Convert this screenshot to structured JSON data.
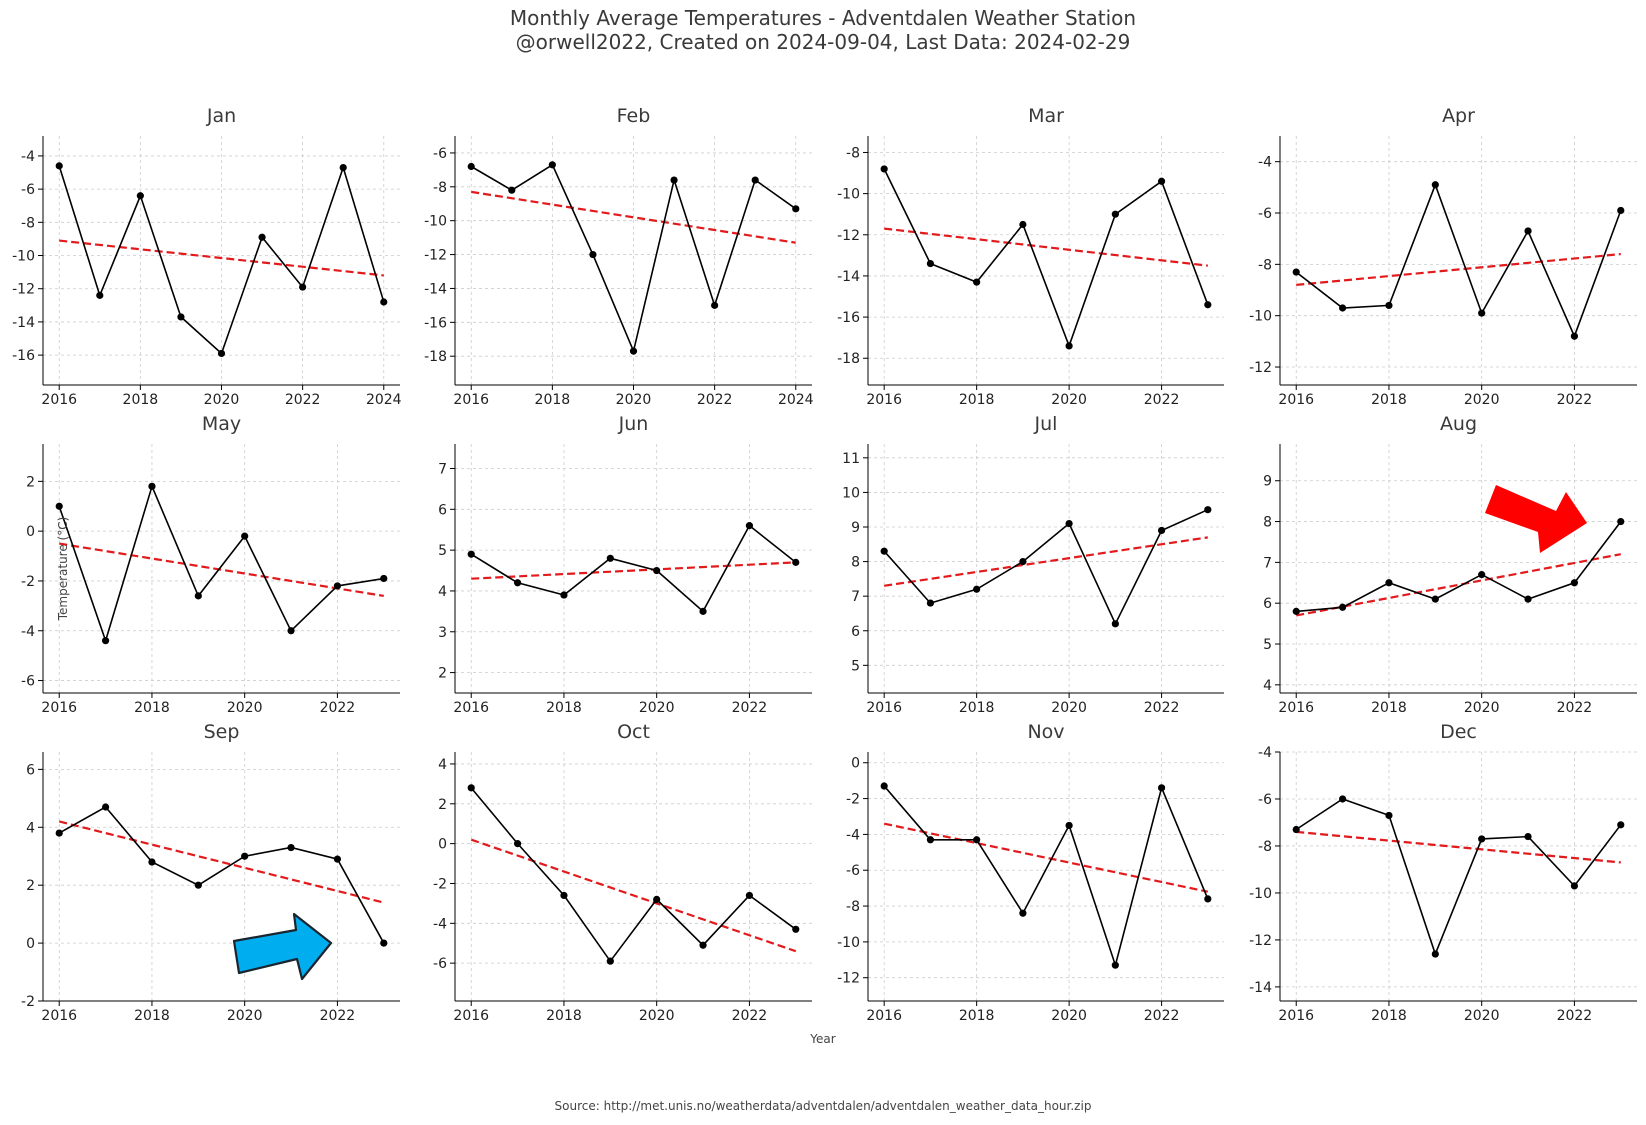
{
  "title_line1": "Monthly Average Temperatures - Adventdalen Weather Station",
  "title_line2": "@orwell2022, Created on 2024-09-04, Last Data: 2024-02-29",
  "xlabel": "Year",
  "ylabel": "Temperature (°C)",
  "source": "Source: http://met.unis.no/weatherdata/adventdalen/adventdalen_weather_data_hour.zip",
  "colors": {
    "data_line": "#000000",
    "trend_line": "#e31a1c",
    "grid": "#cccccc",
    "red_arrow": "#ff0000",
    "blue_arrow": "#00aeef"
  },
  "chart_data": [
    {
      "type": "line",
      "title": "Jan",
      "x": [
        2016,
        2017,
        2018,
        2019,
        2020,
        2021,
        2022,
        2023,
        2024
      ],
      "values": [
        -4.6,
        -12.4,
        -6.4,
        -13.7,
        -15.9,
        -8.9,
        -11.9,
        -4.7,
        -12.8
      ],
      "trend": [
        [
          2016,
          -9.1
        ],
        [
          2024,
          -11.2
        ]
      ],
      "xlim": [
        2015.6,
        2024.4
      ],
      "ylim": [
        -17.8,
        -2.8
      ],
      "xticks": [
        2016,
        2018,
        2020,
        2022,
        2024
      ],
      "yticks": [
        -4,
        -6,
        -8,
        -10,
        -12,
        -14,
        -16
      ],
      "grid": true
    },
    {
      "type": "line",
      "title": "Feb",
      "x": [
        2016,
        2017,
        2018,
        2019,
        2020,
        2021,
        2022,
        2023,
        2024
      ],
      "values": [
        -6.8,
        -8.2,
        -6.7,
        -12.0,
        -17.7,
        -7.6,
        -15.0,
        -7.6,
        -9.3
      ],
      "trend": [
        [
          2016,
          -8.3
        ],
        [
          2024,
          -11.3
        ]
      ],
      "xlim": [
        2015.6,
        2024.4
      ],
      "ylim": [
        -19.7,
        -5.0
      ],
      "xticks": [
        2016,
        2018,
        2020,
        2022,
        2024
      ],
      "yticks": [
        -6,
        -8,
        -10,
        -12,
        -14,
        -16,
        -18
      ],
      "grid": true
    },
    {
      "type": "line",
      "title": "Mar",
      "x": [
        2016,
        2017,
        2018,
        2019,
        2020,
        2021,
        2022,
        2023
      ],
      "values": [
        -8.8,
        -13.4,
        -14.3,
        -11.5,
        -17.4,
        -11.0,
        -9.4,
        -15.4
      ],
      "trend": [
        [
          2016,
          -11.7
        ],
        [
          2023,
          -13.5
        ]
      ],
      "xlim": [
        2015.65,
        2023.35
      ],
      "ylim": [
        -19.3,
        -7.2
      ],
      "xticks": [
        2016,
        2018,
        2020,
        2022
      ],
      "yticks": [
        -8,
        -10,
        -12,
        -14,
        -16,
        -18
      ],
      "grid": true
    },
    {
      "type": "line",
      "title": "Apr",
      "x": [
        2016,
        2017,
        2018,
        2019,
        2020,
        2021,
        2022,
        2023
      ],
      "values": [
        -8.3,
        -9.7,
        -9.6,
        -4.9,
        -9.9,
        -6.7,
        -10.8,
        -5.9
      ],
      "trend": [
        [
          2016,
          -8.8
        ],
        [
          2023,
          -7.6
        ]
      ],
      "xlim": [
        2015.65,
        2023.35
      ],
      "ylim": [
        -12.7,
        -3.0
      ],
      "xticks": [
        2016,
        2018,
        2020,
        2022
      ],
      "yticks": [
        -4,
        -6,
        -8,
        -10,
        -12
      ],
      "grid": true
    },
    {
      "type": "line",
      "title": "May",
      "x": [
        2016,
        2017,
        2018,
        2019,
        2020,
        2021,
        2022,
        2023
      ],
      "values": [
        1.0,
        -4.4,
        1.8,
        -2.6,
        -0.2,
        -4.0,
        -2.2,
        -1.9
      ],
      "trend": [
        [
          2016,
          -0.5
        ],
        [
          2023,
          -2.6
        ]
      ],
      "xlim": [
        2015.65,
        2023.35
      ],
      "ylim": [
        -6.5,
        3.5
      ],
      "xticks": [
        2016,
        2018,
        2020,
        2022
      ],
      "yticks": [
        2,
        0,
        -2,
        -4,
        -6
      ],
      "grid": true
    },
    {
      "type": "line",
      "title": "Jun",
      "x": [
        2016,
        2017,
        2018,
        2019,
        2020,
        2021,
        2022,
        2023
      ],
      "values": [
        4.9,
        4.2,
        3.9,
        4.8,
        4.5,
        3.5,
        5.6,
        4.7
      ],
      "trend": [
        [
          2016,
          4.3
        ],
        [
          2023,
          4.7
        ]
      ],
      "xlim": [
        2015.65,
        2023.35
      ],
      "ylim": [
        1.5,
        7.6
      ],
      "xticks": [
        2016,
        2018,
        2020,
        2022
      ],
      "yticks": [
        2,
        3,
        4,
        5,
        6,
        7
      ],
      "grid": true
    },
    {
      "type": "line",
      "title": "Jul",
      "x": [
        2016,
        2017,
        2018,
        2019,
        2020,
        2021,
        2022,
        2023
      ],
      "values": [
        8.3,
        6.8,
        7.2,
        8.0,
        9.1,
        6.2,
        8.9,
        9.5
      ],
      "trend": [
        [
          2016,
          7.3
        ],
        [
          2023,
          8.7
        ]
      ],
      "xlim": [
        2015.65,
        2023.35
      ],
      "ylim": [
        4.2,
        11.4
      ],
      "xticks": [
        2016,
        2018,
        2020,
        2022
      ],
      "yticks": [
        5,
        6,
        7,
        8,
        9,
        10,
        11
      ],
      "grid": true
    },
    {
      "type": "line",
      "title": "Aug",
      "x": [
        2016,
        2017,
        2018,
        2019,
        2020,
        2021,
        2022,
        2023
      ],
      "values": [
        5.8,
        5.9,
        6.5,
        6.1,
        6.7,
        6.1,
        6.5,
        8.0
      ],
      "trend": [
        [
          2016,
          5.7
        ],
        [
          2023,
          7.2
        ]
      ],
      "xlim": [
        2015.65,
        2023.35
      ],
      "ylim": [
        3.8,
        9.9
      ],
      "xticks": [
        2016,
        2018,
        2020,
        2022
      ],
      "yticks": [
        4,
        5,
        6,
        7,
        8,
        9
      ],
      "grid": true
    },
    {
      "type": "line",
      "title": "Sep",
      "x": [
        2016,
        2017,
        2018,
        2019,
        2020,
        2021,
        2022,
        2023
      ],
      "values": [
        3.8,
        4.7,
        2.8,
        2.0,
        3.0,
        3.3,
        2.9,
        0.0
      ],
      "trend": [
        [
          2016,
          4.2
        ],
        [
          2023,
          1.4
        ]
      ],
      "xlim": [
        2015.65,
        2023.35
      ],
      "ylim": [
        -2.0,
        6.6
      ],
      "xticks": [
        2016,
        2018,
        2020,
        2022
      ],
      "yticks": [
        6,
        4,
        2,
        0,
        -2
      ],
      "grid": true
    },
    {
      "type": "line",
      "title": "Oct",
      "x": [
        2016,
        2017,
        2018,
        2019,
        2020,
        2021,
        2022,
        2023
      ],
      "values": [
        2.8,
        0.0,
        -2.6,
        -5.9,
        -2.8,
        -5.1,
        -2.6,
        -4.3
      ],
      "trend": [
        [
          2016,
          0.2
        ],
        [
          2023,
          -5.4
        ]
      ],
      "xlim": [
        2015.65,
        2023.35
      ],
      "ylim": [
        -7.9,
        4.6
      ],
      "xticks": [
        2016,
        2018,
        2020,
        2022
      ],
      "yticks": [
        4,
        2,
        0,
        -2,
        -4,
        -6
      ],
      "grid": true
    },
    {
      "type": "line",
      "title": "Nov",
      "x": [
        2016,
        2017,
        2018,
        2019,
        2020,
        2021,
        2022,
        2023
      ],
      "values": [
        -1.3,
        -4.3,
        -4.3,
        -8.4,
        -3.5,
        -11.3,
        -1.4,
        -7.6
      ],
      "trend": [
        [
          2016,
          -3.4
        ],
        [
          2023,
          -7.2
        ]
      ],
      "xlim": [
        2015.65,
        2023.35
      ],
      "ylim": [
        -13.3,
        0.6
      ],
      "xticks": [
        2016,
        2018,
        2020,
        2022
      ],
      "yticks": [
        0,
        -2,
        -4,
        -6,
        -8,
        -10,
        -12
      ],
      "grid": true
    },
    {
      "type": "line",
      "title": "Dec",
      "x": [
        2016,
        2017,
        2018,
        2019,
        2020,
        2021,
        2022,
        2023
      ],
      "values": [
        -7.3,
        -6.0,
        -6.7,
        -12.6,
        -7.7,
        -7.6,
        -9.7,
        -7.1
      ],
      "trend": [
        [
          2016,
          -7.4
        ],
        [
          2023,
          -8.7
        ]
      ],
      "xlim": [
        2015.65,
        2023.35
      ],
      "ylim": [
        -14.6,
        -4.0
      ],
      "xticks": [
        2016,
        2018,
        2020,
        2022
      ],
      "yticks": [
        -4,
        -6,
        -8,
        -10,
        -12,
        -14
      ],
      "grid": true
    }
  ]
}
